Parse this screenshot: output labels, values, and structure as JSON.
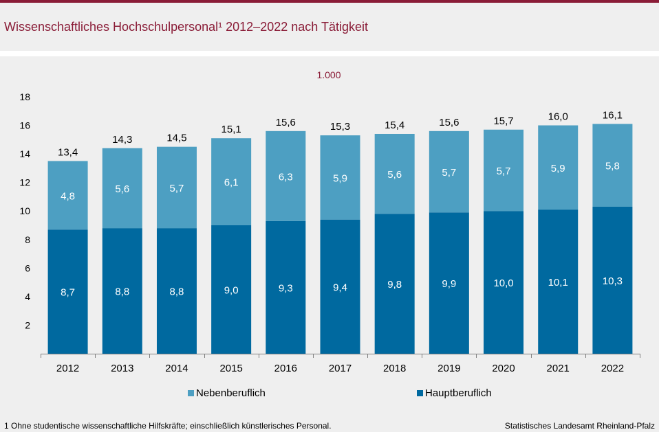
{
  "title": "Wissenschaftliches Hochschulpersonal¹ 2012–2022 nach Tätigkeit",
  "footnote": "1 Ohne studentische wissenschaftliche Hilfskräfte; einschließlich künstlerisches Personal.",
  "source": "Statistisches Landesamt Rheinland-Pfalz",
  "colors": {
    "accent": "#8a1c37",
    "hauptberuflich": "#00699f",
    "nebenberuflich": "#4d9fc2",
    "background": "#efefef"
  },
  "chart_data": {
    "type": "bar",
    "stacked": true,
    "unit_label": "1.000",
    "categories": [
      "2012",
      "2013",
      "2014",
      "2015",
      "2016",
      "2017",
      "2018",
      "2019",
      "2020",
      "2021",
      "2022"
    ],
    "series": [
      {
        "name": "Hauptberuflich",
        "values": [
          8.7,
          8.8,
          8.8,
          9.0,
          9.3,
          9.4,
          9.8,
          9.9,
          10.0,
          10.1,
          10.3
        ],
        "labels": [
          "8,7",
          "8,8",
          "8,8",
          "9,0",
          "9,3",
          "9,4",
          "9,8",
          "9,9",
          "10,0",
          "10,1",
          "10,3"
        ],
        "color": "#00699f"
      },
      {
        "name": "Nebenberuflich",
        "values": [
          4.8,
          5.6,
          5.7,
          6.1,
          6.3,
          5.9,
          5.6,
          5.7,
          5.7,
          5.9,
          5.8
        ],
        "labels": [
          "4,8",
          "5,6",
          "5,7",
          "6,1",
          "6,3",
          "5,9",
          "5,6",
          "5,7",
          "5,7",
          "5,9",
          "5,8"
        ],
        "color": "#4d9fc2"
      }
    ],
    "totals": [
      13.4,
      14.3,
      14.5,
      15.1,
      15.6,
      15.3,
      15.4,
      15.6,
      15.7,
      16.0,
      16.1
    ],
    "total_labels": [
      "13,4",
      "14,3",
      "14,5",
      "15,1",
      "15,6",
      "15,3",
      "15,4",
      "15,6",
      "15,7",
      "16,0",
      "16,1"
    ],
    "ylim": [
      0,
      18
    ],
    "yticks": [
      2,
      4,
      6,
      8,
      10,
      12,
      14,
      16,
      18
    ],
    "grid": false,
    "legend": {
      "position": "bottom",
      "order": [
        "Nebenberuflich",
        "Hauptberuflich"
      ]
    }
  }
}
